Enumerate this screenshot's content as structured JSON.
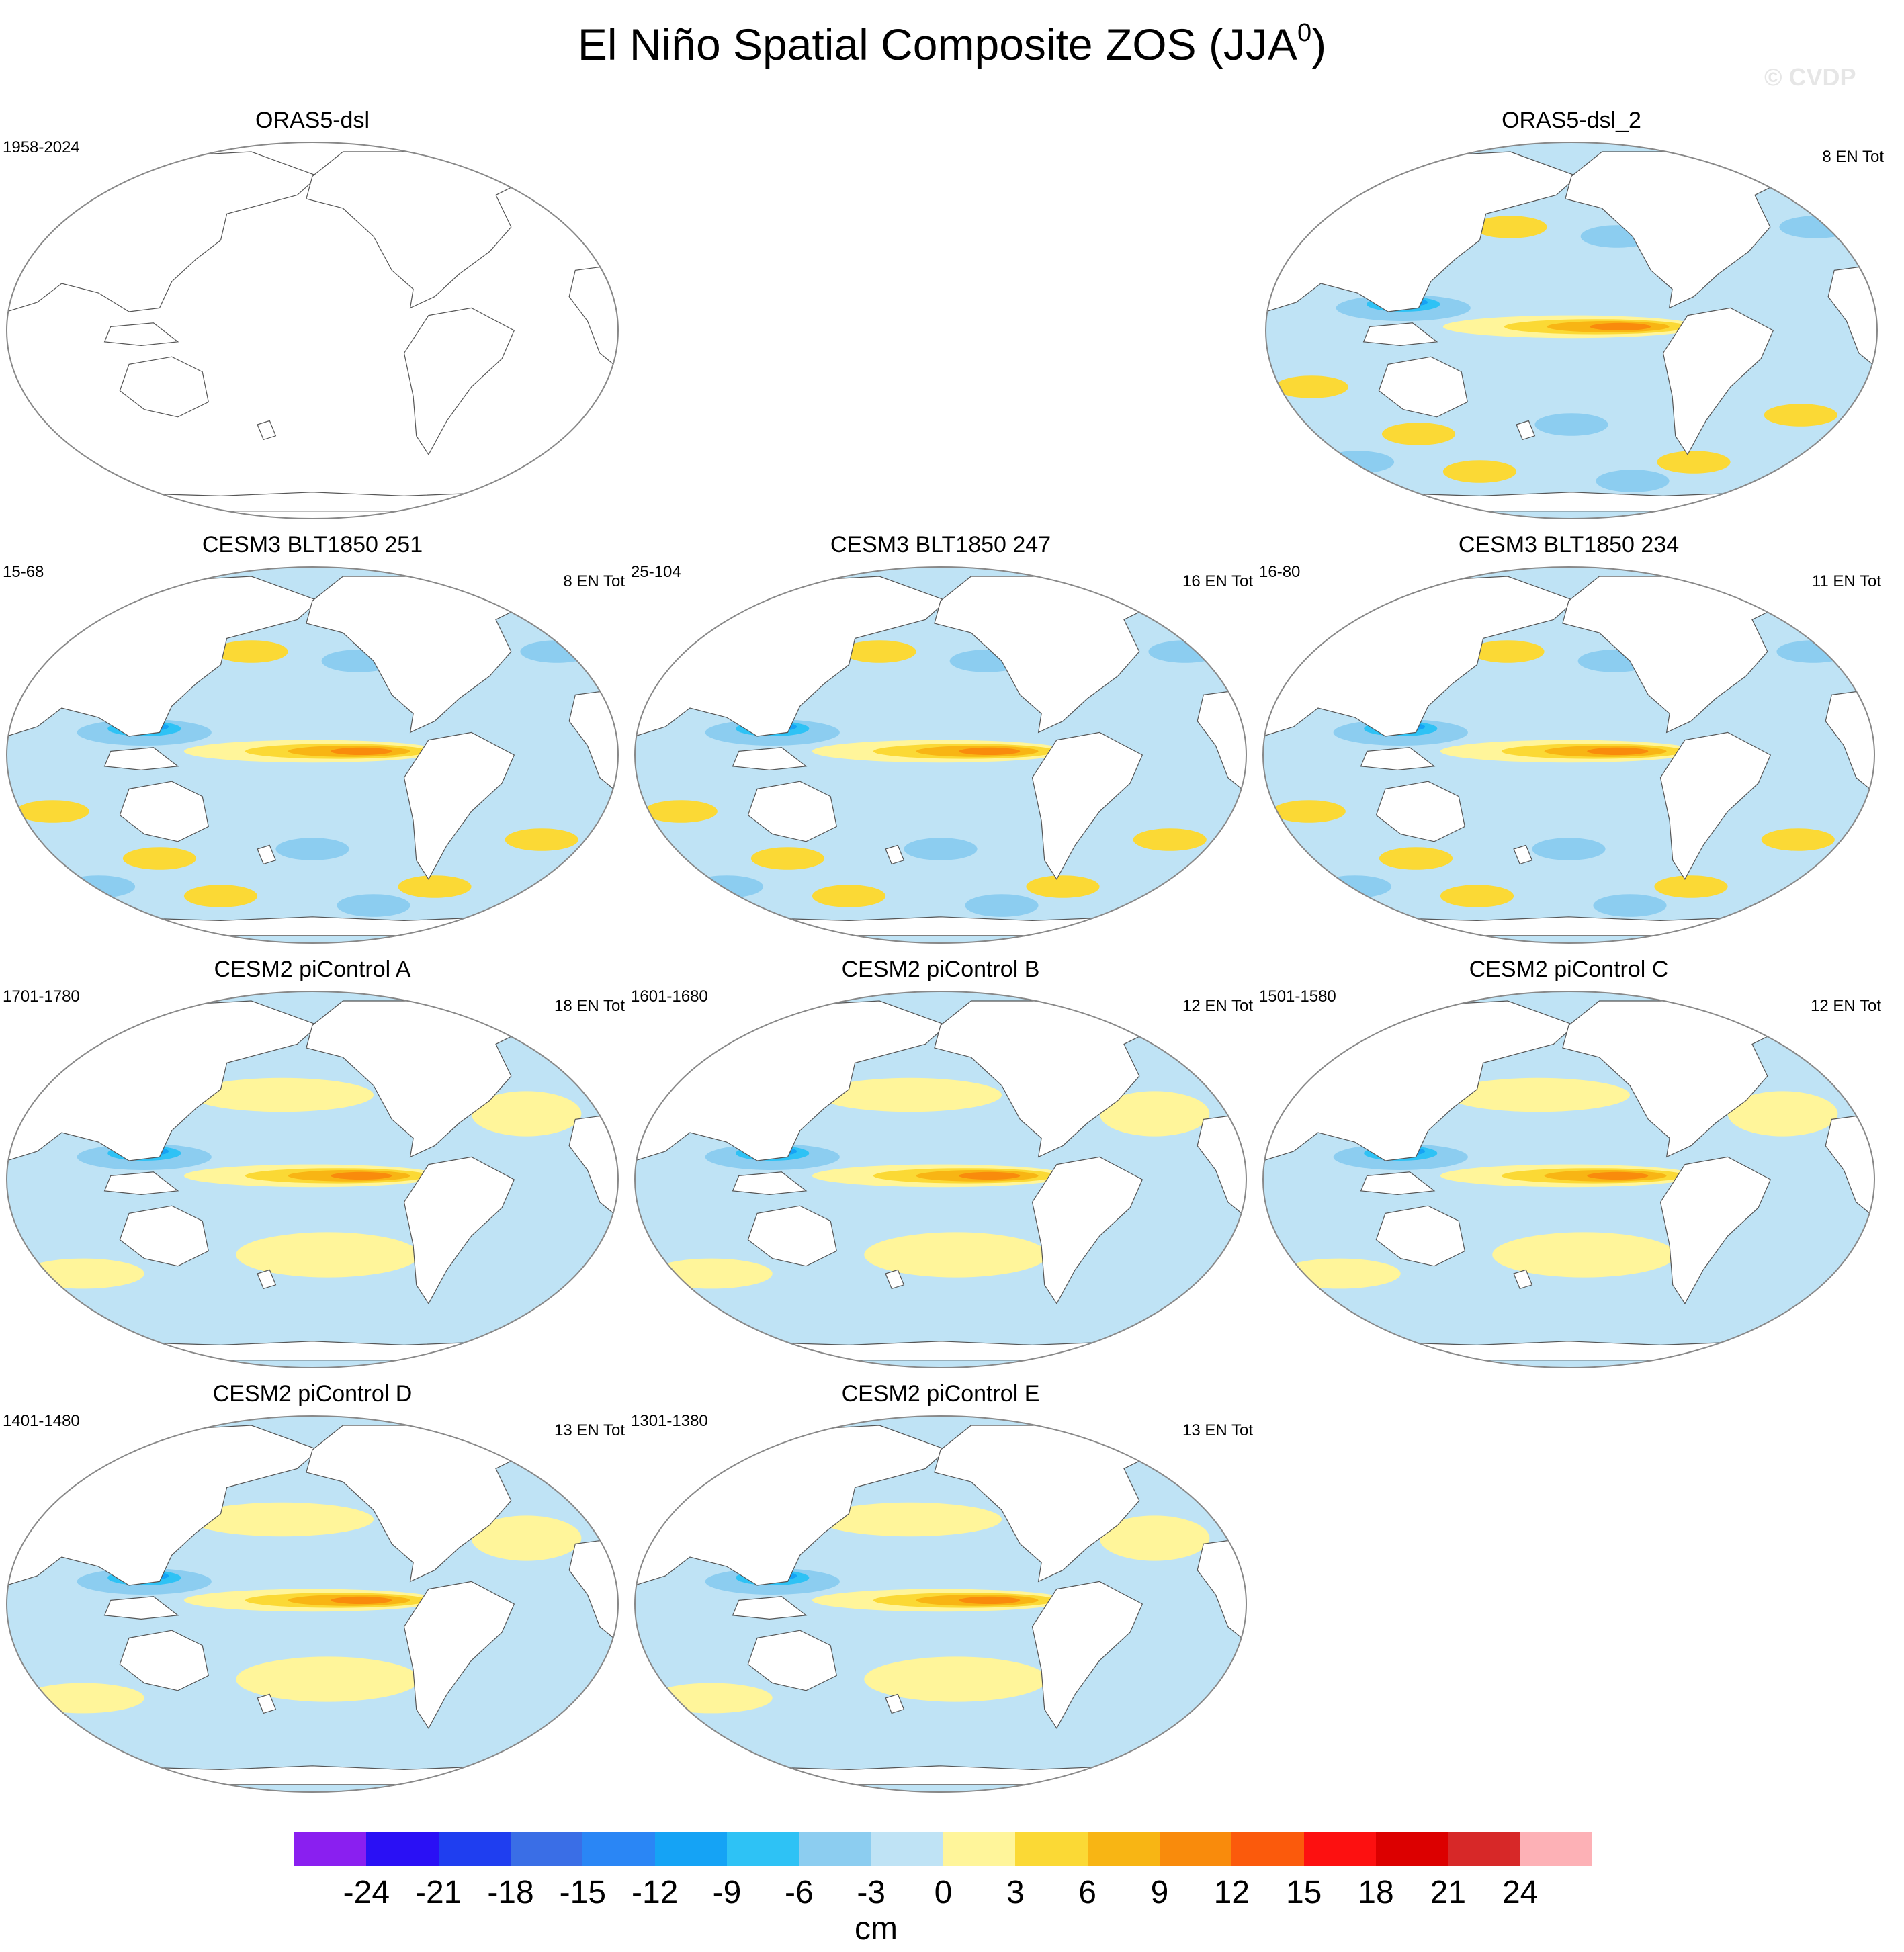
{
  "title": "El Niño Spatial Composite ZOS (JJA",
  "title_sup": "0",
  "title_close": ")",
  "watermark": "© CVDP",
  "panels": [
    {
      "title": "ORAS5-dsl",
      "left_label": "1958-2024",
      "right_label": "",
      "filled": false,
      "style": "obs"
    },
    {
      "title": "ORAS5-dsl_2",
      "left_label": "",
      "right_label": "8 EN Tot",
      "filled": true,
      "style": "noisy"
    },
    {
      "title": "CESM3 BLT1850 251",
      "left_label": "15-68",
      "right_label": "8 EN Tot",
      "filled": true,
      "style": "noisy"
    },
    {
      "title": "CESM3 BLT1850 247",
      "left_label": "25-104",
      "right_label": "16 EN Tot",
      "filled": true,
      "style": "noisy"
    },
    {
      "title": "CESM3 BLT1850 234",
      "left_label": "16-80",
      "right_label": "11 EN Tot",
      "filled": true,
      "style": "noisy"
    },
    {
      "title": "CESM2 piControl A",
      "left_label": "1701-1780",
      "right_label": "18 EN Tot",
      "filled": true,
      "style": "smooth"
    },
    {
      "title": "CESM2 piControl B",
      "left_label": "1601-1680",
      "right_label": "12 EN Tot",
      "filled": true,
      "style": "smooth"
    },
    {
      "title": "CESM2 piControl C",
      "left_label": "1501-1580",
      "right_label": "12 EN Tot",
      "filled": true,
      "style": "smooth"
    },
    {
      "title": "CESM2 piControl D",
      "left_label": "1401-1480",
      "right_label": "13 EN Tot",
      "filled": true,
      "style": "smooth"
    },
    {
      "title": "CESM2 piControl E",
      "left_label": "1301-1380",
      "right_label": "13 EN Tot",
      "filled": true,
      "style": "smooth"
    }
  ],
  "colorbar": {
    "colors": [
      "#8a1ff0",
      "#2a10f5",
      "#1f3ef0",
      "#3a6ee6",
      "#2a86f5",
      "#15a3f5",
      "#2ec2f5",
      "#8ccdf0",
      "#bfe3f5",
      "#fff59a",
      "#fbd935",
      "#f8b514",
      "#f98b0c",
      "#fb5a0c",
      "#fd1010",
      "#dc0000",
      "#d72828",
      "#fdb1b6"
    ],
    "labels": [
      "-24",
      "-21",
      "-18",
      "-15",
      "-12",
      "-9",
      "-6",
      "-3",
      "0",
      "3",
      "6",
      "9",
      "12",
      "15",
      "18",
      "21",
      "24"
    ],
    "units": "cm"
  }
}
